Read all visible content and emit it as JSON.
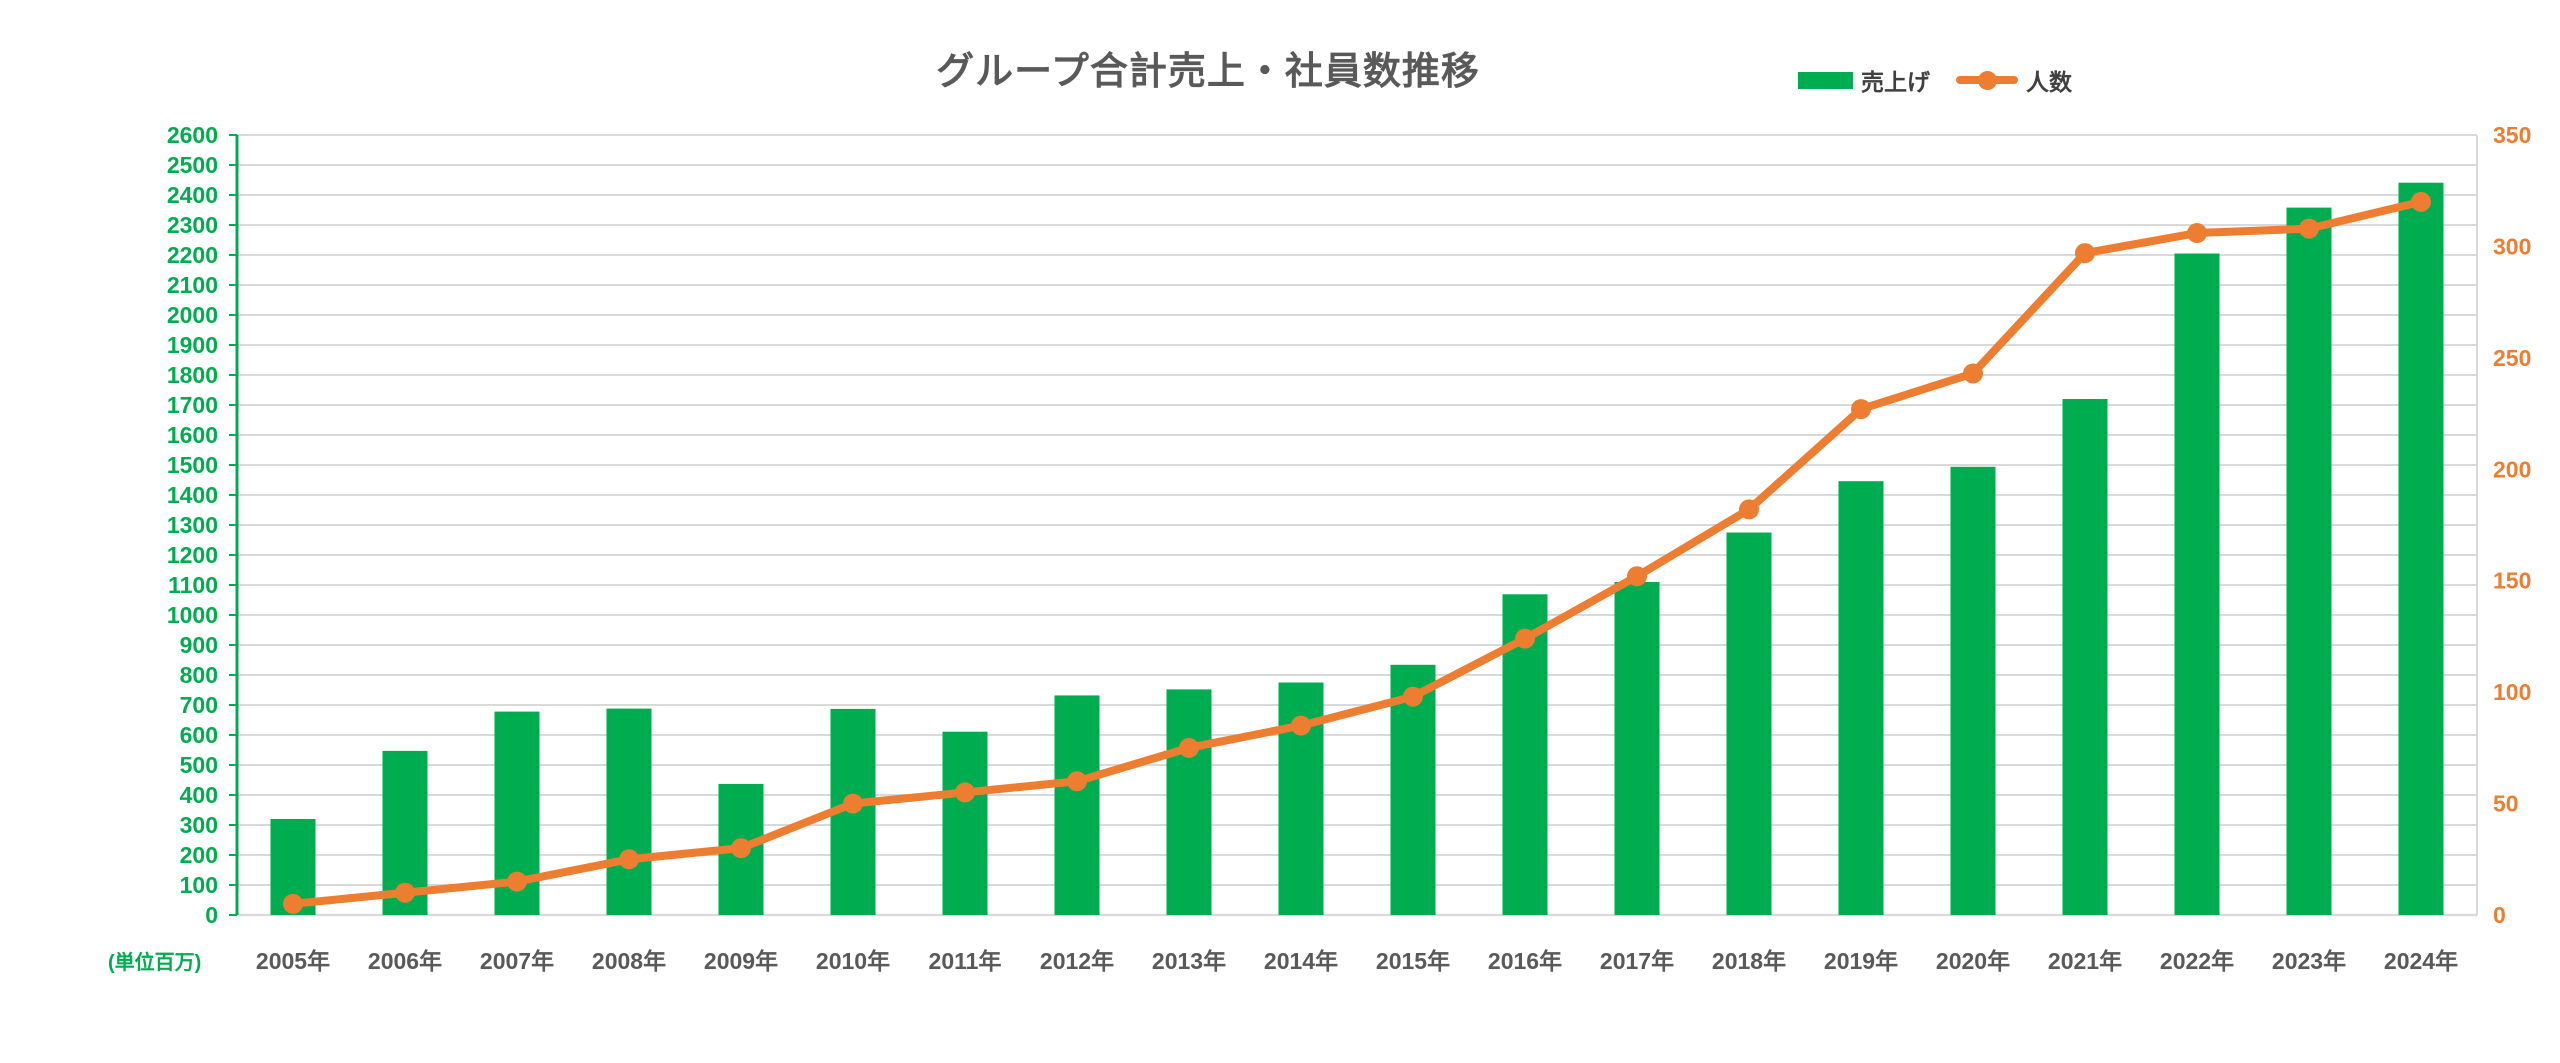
{
  "title": "グループ合計売上・社員数推移",
  "unit_label": "(単位百万)",
  "legend": {
    "items": [
      {
        "label": "売上げ",
        "type": "bar",
        "color": "#00AC50"
      },
      {
        "label": "人数",
        "type": "line",
        "color": "#ED7D31"
      }
    ]
  },
  "colors": {
    "bar_green": "#00AC50",
    "line_orange": "#ED7D31",
    "left_axis_green": "#00AC50",
    "right_axis_orange": "#ED7D31",
    "gridline_gray": "#D9D9D9",
    "title_gray": "#595959",
    "category_gray": "#595959"
  },
  "chart_data": {
    "type": "bar",
    "subtype": "combo-bar-line-dual-axis",
    "title": "グループ合計売上・社員数推移",
    "categories": [
      "2005年",
      "2006年",
      "2007年",
      "2008年",
      "2009年",
      "2010年",
      "2011年",
      "2012年",
      "2013年",
      "2014年",
      "2015年",
      "2016年",
      "2017年",
      "2018年",
      "2019年",
      "2020年",
      "2021年",
      "2022年",
      "2023年",
      "2024年"
    ],
    "series": [
      {
        "name": "売上げ",
        "type": "bar",
        "axis": "left",
        "color": "#00AC50",
        "values": [
          320,
          547,
          678,
          688,
          437,
          687,
          611,
          732,
          752,
          775,
          834,
          1069,
          1110,
          1275,
          1446,
          1494,
          1720,
          2205,
          2358,
          2441
        ]
      },
      {
        "name": "人数",
        "type": "line",
        "axis": "right",
        "color": "#ED7D31",
        "values": [
          5,
          10,
          15,
          25,
          30,
          50,
          55,
          60,
          75,
          85,
          98,
          124,
          152,
          182,
          227,
          243,
          297,
          306,
          308,
          320
        ]
      }
    ],
    "left_axis": {
      "min": 0,
      "max": 2600,
      "step": 100,
      "ticks": [
        "0",
        "100",
        "200",
        "300",
        "400",
        "500",
        "600",
        "700",
        "800",
        "900",
        "1000",
        "1100",
        "1200",
        "1300",
        "1400",
        "1500",
        "1600",
        "1700",
        "1800",
        "1900",
        "2000",
        "2100",
        "2200",
        "2300",
        "2400",
        "2500",
        "2600"
      ]
    },
    "right_axis": {
      "min": 0,
      "max": 350,
      "step": 50,
      "ticks": [
        "0",
        "50",
        "100",
        "150",
        "200",
        "250",
        "300",
        "350"
      ]
    },
    "xlabel": "",
    "ylabel_left_unit": "(単位百万)",
    "grid": true,
    "legend_position": "top-right"
  }
}
